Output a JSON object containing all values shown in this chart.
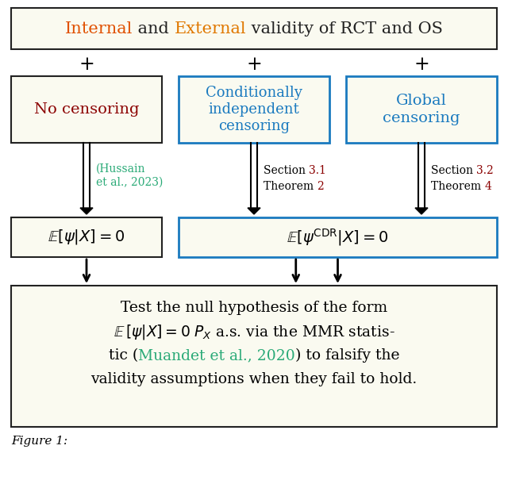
{
  "bg_color": "#fafaf0",
  "border_color": "#222222",
  "title_parts": [
    [
      "Internal",
      "#e05000"
    ],
    [
      " and ",
      "#222222"
    ],
    [
      "External",
      "#e07800"
    ],
    [
      " validity of RCT and OS",
      "#222222"
    ]
  ],
  "box1_text": "No censoring",
  "box1_color": "#8b0000",
  "box2_text": "Conditionally\nindependent\ncensoring",
  "box2_color": "#1a7abf",
  "box3_text": "Global\ncensoring",
  "box3_color": "#1a7abf",
  "blue_border": "#1a7abf",
  "hussain_color": "#2aaa77",
  "section_color": "#8b0000",
  "muandet_color": "#2aaa77"
}
